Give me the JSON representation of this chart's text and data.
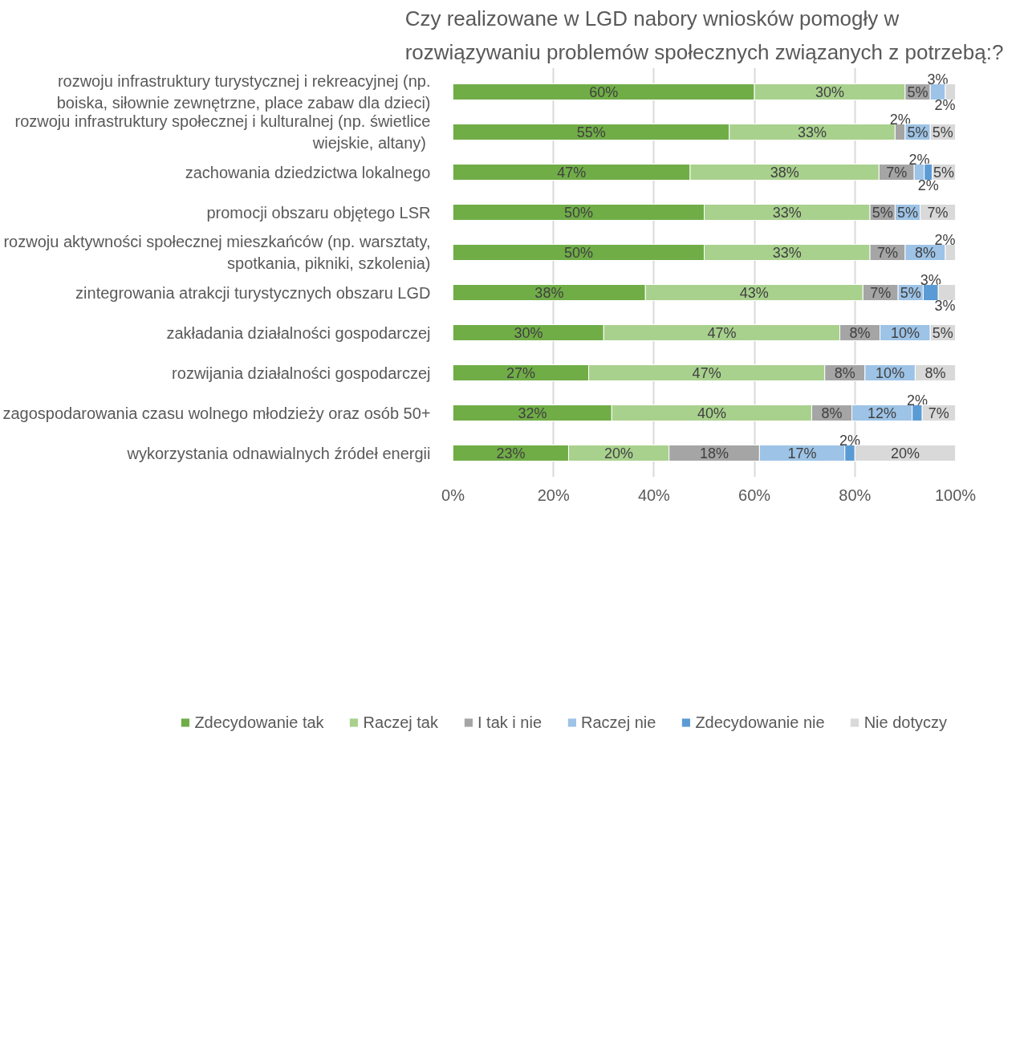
{
  "chart_data": {
    "type": "bar",
    "orientation": "horizontal",
    "stacked": true,
    "title": "Czy realizowane w LGD nabory wniosków pomogły w rozwiązywaniu problemów społecznych związanych z potrzebą:?",
    "categories": [
      "rozwoju infrastruktury turystycznej i rekreacyjnej (np. boiska, siłownie zewnętrzne, place zabaw dla dzieci)",
      "rozwoju infrastruktury społecznej i kulturalnej (np. świetlice wiejskie,  altany)",
      "zachowania dziedzictwa lokalnego",
      "promocji obszaru objętego LSR",
      "rozwoju aktywności społecznej mieszkańców (np. warsztaty, spotkania, pikniki, szkolenia)",
      "zintegrowania atrakcji turystycznych obszaru LGD",
      "zakładania działalności gospodarczej",
      "rozwijania działalności gospodarczej",
      "zagospodarowania czasu wolnego młodzieży oraz osób 50+",
      "wykorzystania odnawialnych źródeł energii"
    ],
    "series": [
      {
        "name": "Zdecydowanie tak",
        "color": "#70ad47",
        "values": [
          60,
          55,
          47.2,
          50,
          50,
          38.3,
          30,
          27,
          31.6,
          23
        ],
        "value_labels": [
          "60%",
          "55%",
          "47%",
          "50%",
          "50%",
          "38%",
          "30%",
          "27%",
          "32%",
          "23%"
        ]
      },
      {
        "name": "Raczej tak",
        "color": "#a9d18e",
        "values": [
          30,
          33,
          37.6,
          33,
          33,
          43.3,
          47,
          47,
          39.8,
          20
        ],
        "value_labels": [
          "30%",
          "33%",
          "38%",
          "33%",
          "33%",
          "43%",
          "47%",
          "47%",
          "40%",
          "20%"
        ]
      },
      {
        "name": "I tak i nie",
        "color": "#a5a5a5",
        "values": [
          5,
          2,
          7,
          5,
          7,
          7,
          8,
          8,
          8,
          18
        ],
        "value_labels": [
          "5%",
          "2%",
          "7%",
          "5%",
          "7%",
          "7%",
          "8%",
          "8%",
          "8%",
          "18%"
        ]
      },
      {
        "name": "Raczej nie",
        "color": "#9dc3e6",
        "values": [
          3,
          5,
          2,
          5,
          8,
          5,
          10,
          10,
          12,
          17
        ],
        "value_labels": [
          "3%",
          "5%",
          "2%",
          "5%",
          "8%",
          "5%",
          "10%",
          "10%",
          "12%",
          "17%"
        ]
      },
      {
        "name": "Zdecydowanie nie",
        "color": "#5b9bd5",
        "values": [
          null,
          null,
          1.6,
          null,
          null,
          3,
          null,
          null,
          2,
          2
        ],
        "value_labels": [
          null,
          null,
          "2%",
          null,
          null,
          "3%",
          null,
          null,
          "2%",
          "2%"
        ]
      },
      {
        "name": "Nie dotyczy",
        "color": "#d9d9d9",
        "values": [
          2,
          5,
          4.6,
          7,
          2,
          3.4,
          5,
          8,
          6.6,
          20
        ],
        "value_labels": [
          "2%",
          "5%",
          "5%",
          "7%",
          "2%",
          "3%",
          "5%",
          "8%",
          "7%",
          "20%"
        ]
      }
    ],
    "xlim": [
      0,
      100
    ],
    "xticks": [
      {
        "value": 0,
        "label": "0%"
      },
      {
        "value": 20,
        "label": "20%"
      },
      {
        "value": 40,
        "label": "40%"
      },
      {
        "value": 60,
        "label": "60%"
      },
      {
        "value": 80,
        "label": "80%"
      },
      {
        "value": 100,
        "label": "100%"
      }
    ],
    "grid": "x",
    "legend": "bottom"
  }
}
